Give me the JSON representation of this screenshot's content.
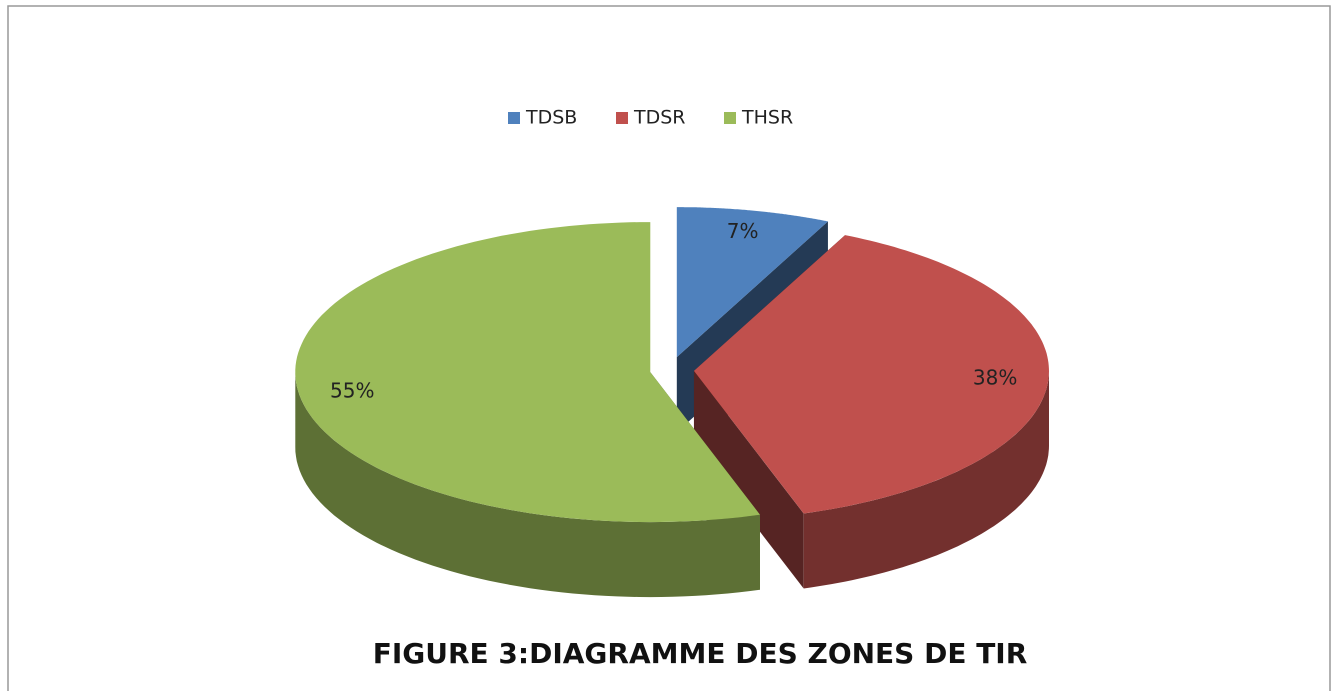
{
  "chart_data": {
    "type": "pie",
    "title": "FIGURE 3:DIAGRAMME DES ZONES DE TIR",
    "categories": [
      "TDSB",
      "TDSR",
      "THSR"
    ],
    "values": [
      7,
      38,
      55
    ],
    "value_labels": [
      "7%",
      "38%",
      "55%"
    ],
    "colors": [
      "#4f81bd",
      "#c0504d",
      "#9bbb59"
    ],
    "legend": "top"
  }
}
